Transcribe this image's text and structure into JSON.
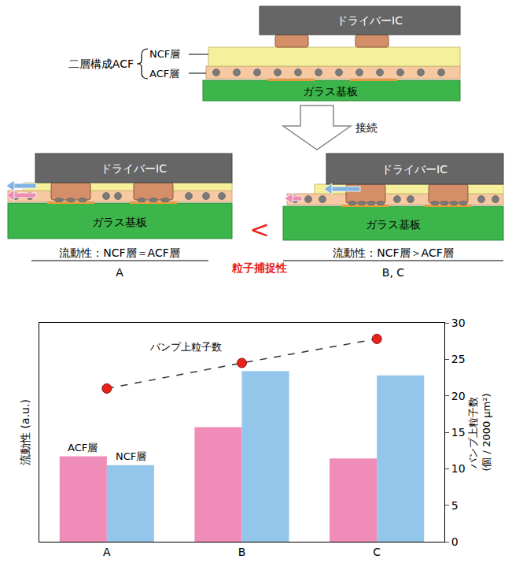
{
  "diagram": {
    "before": {
      "ic": "ドライバーIC",
      "brace_label": "二層構成ACF",
      "upper_layer": "NCF層",
      "lower_layer": "ACF層",
      "substrate": "ガラス基板"
    },
    "arrow_label": "接続",
    "after_left": {
      "ic": "ドライバーIC",
      "substrate": "ガラス基板",
      "caption": "流動性：NCF層＝ACF層",
      "samples": "A"
    },
    "after_right": {
      "ic": "ドライバーIC",
      "substrate": "ガラス基板",
      "caption": "流動性：NCF層＞ACF層",
      "samples": "B, C"
    },
    "comparison": {
      "symbol": "<",
      "label": "粒子捕捉性"
    }
  },
  "chart_data": {
    "type": "bar",
    "categories": [
      "A",
      "B",
      "C"
    ],
    "ylabel": "流動性 (a.u.)",
    "ylim": [
      0,
      30
    ],
    "y2label": "バンプ上粒子数 (個 / 2000 μm²)",
    "y2lim": [
      0,
      30
    ],
    "y2ticks": [
      0,
      5,
      10,
      15,
      20,
      25,
      30
    ],
    "series": [
      {
        "name": "ACF層",
        "color": "#f08cb8",
        "values": [
          11.7,
          15.7,
          11.4
        ]
      },
      {
        "name": "NCF層",
        "color": "#94c6ec",
        "values": [
          10.5,
          23.4,
          22.8
        ]
      },
      {
        "name": "バンプ上粒子数",
        "type": "line",
        "axis": "y2",
        "color": "#e8221c",
        "marker": "circle",
        "line_style": "dash",
        "values": [
          21.0,
          24.5,
          27.8
        ]
      }
    ]
  }
}
